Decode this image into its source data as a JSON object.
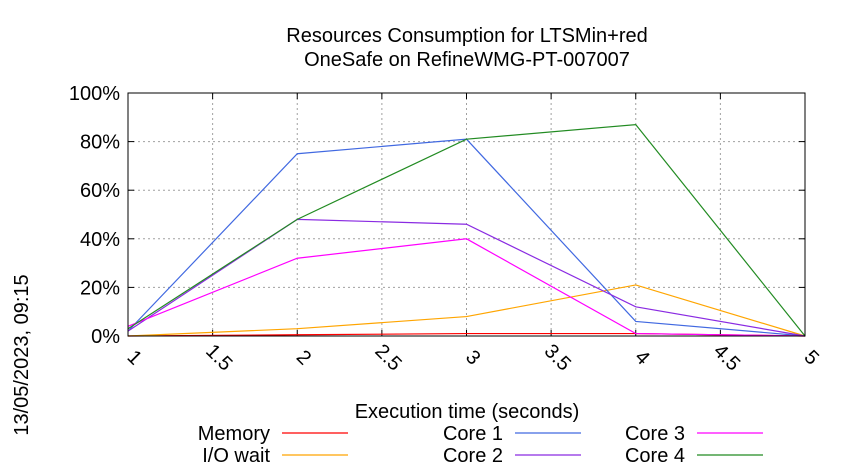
{
  "chart_data": {
    "type": "line",
    "title_lines": [
      "Resources Consumption for LTSMin+red",
      "OneSafe on RefineWMG-PT-007007"
    ],
    "xlabel": "Execution time (seconds)",
    "ylabel": "",
    "side_timestamp": "13/05/2023, 09:15",
    "x_ticks": [
      "1",
      "1.5",
      "2",
      "2.5",
      "3",
      "3.5",
      "4",
      "4.5",
      "5"
    ],
    "y_ticks": [
      "0%",
      "20%",
      "40%",
      "60%",
      "80%",
      "100%"
    ],
    "xlim": [
      1,
      5
    ],
    "ylim": [
      0,
      100
    ],
    "grid": true,
    "legend_position": "bottom",
    "x": [
      1,
      2,
      3,
      4,
      5
    ],
    "series": [
      {
        "name": "Memory",
        "color": "#ff0000",
        "values": [
          0,
          0.5,
          1,
          1,
          0
        ]
      },
      {
        "name": "I/O wait",
        "color": "#ffa500",
        "values": [
          0,
          3,
          8,
          21,
          0
        ]
      },
      {
        "name": "Core 1",
        "color": "#4169e1",
        "values": [
          2,
          75,
          81,
          6,
          0
        ]
      },
      {
        "name": "Core 2",
        "color": "#8a2be2",
        "values": [
          2,
          48,
          46,
          12,
          0
        ]
      },
      {
        "name": "Core 3",
        "color": "#ff00ff",
        "values": [
          4,
          32,
          40,
          1,
          0
        ]
      },
      {
        "name": "Core 4",
        "color": "#228b22",
        "values": [
          3,
          48,
          81,
          87,
          0
        ]
      }
    ]
  }
}
